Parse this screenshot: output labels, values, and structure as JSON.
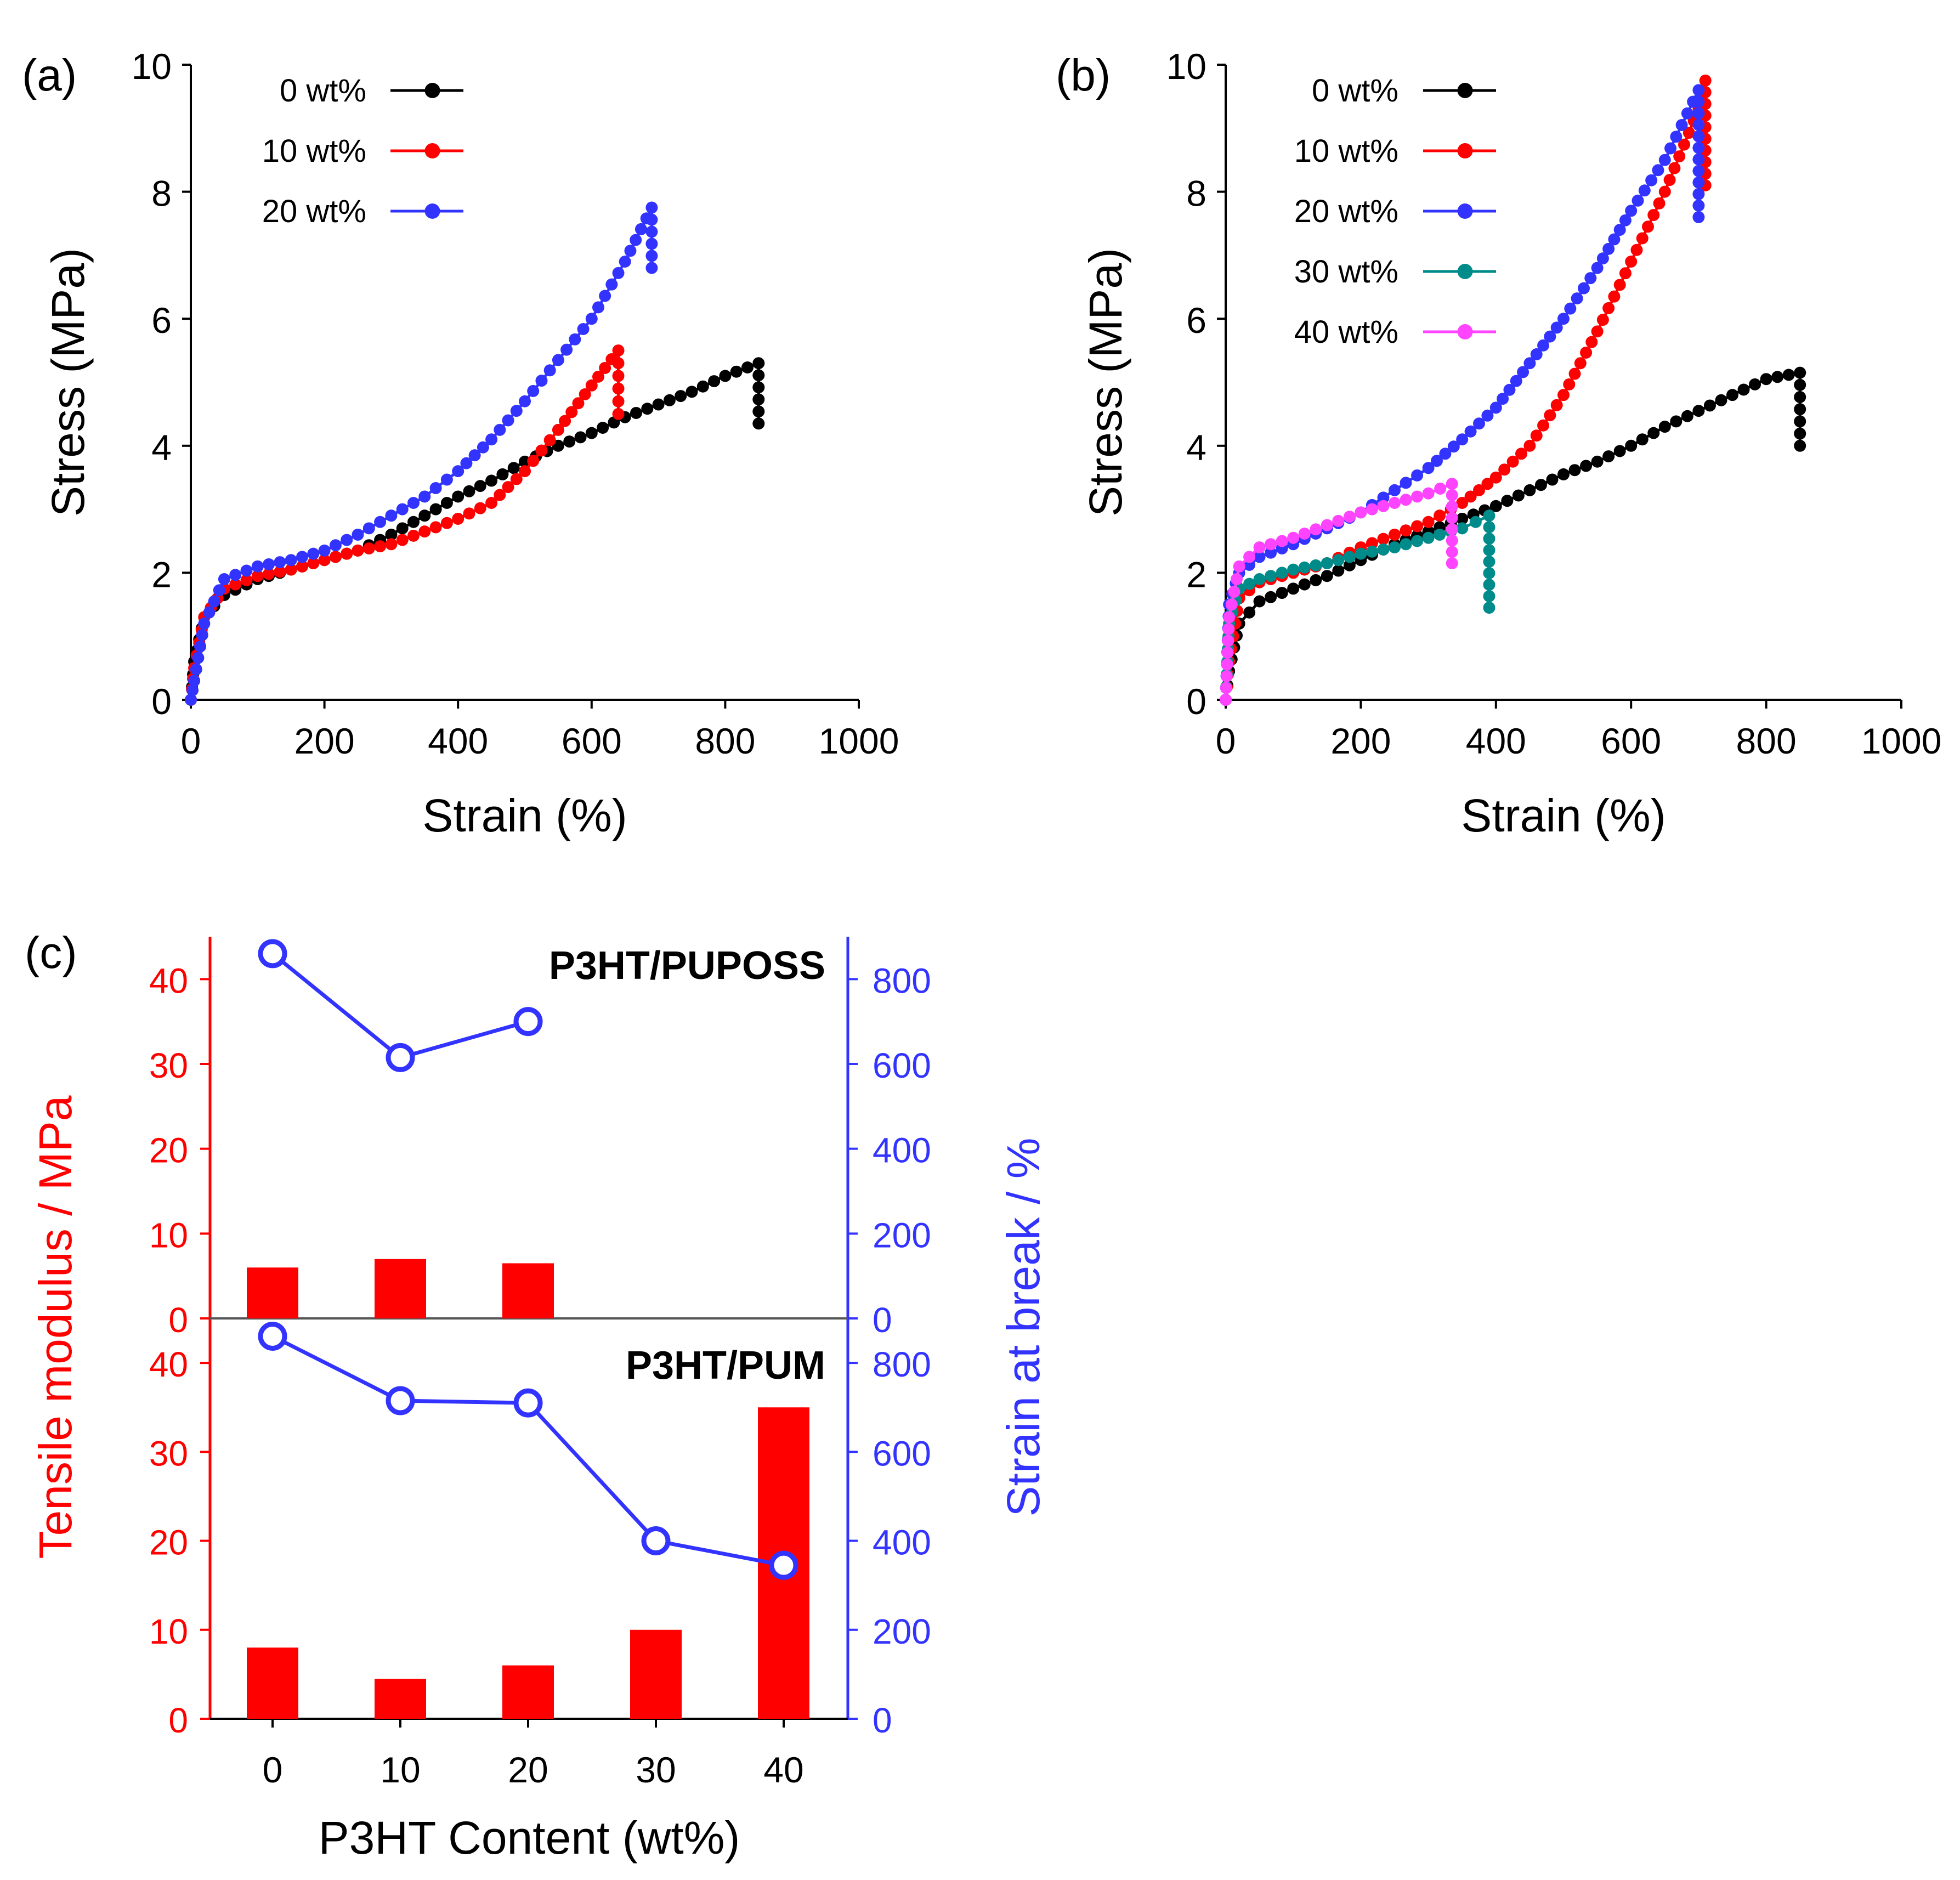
{
  "chart_data": [
    {
      "panel_label": "(a)",
      "type": "line",
      "xlabel": "Strain (%)",
      "ylabel": "Stress (MPa)",
      "xlim": [
        0,
        1000
      ],
      "ylim": [
        0,
        10
      ],
      "x_ticks": [
        "0",
        "200",
        "400",
        "600",
        "800",
        "1000"
      ],
      "y_ticks": [
        "0",
        "2",
        "4",
        "6",
        "8",
        "10"
      ],
      "legend_position": "top-left",
      "series": [
        {
          "name": "0 wt%",
          "color": "#000000",
          "points": [
            [
              0,
              0
            ],
            [
              5,
              0.6
            ],
            [
              20,
              1.3
            ],
            [
              50,
              1.65
            ],
            [
              100,
              1.9
            ],
            [
              150,
              2.05
            ],
            [
              200,
              2.2
            ],
            [
              250,
              2.35
            ],
            [
              300,
              2.6
            ],
            [
              350,
              2.9
            ],
            [
              400,
              3.2
            ],
            [
              450,
              3.45
            ],
            [
              500,
              3.75
            ],
            [
              550,
              4.0
            ],
            [
              600,
              4.2
            ],
            [
              650,
              4.45
            ],
            [
              700,
              4.65
            ],
            [
              750,
              4.85
            ],
            [
              800,
              5.1
            ],
            [
              850,
              5.3
            ],
            [
              850,
              4.35
            ]
          ]
        },
        {
          "name": "10 wt%",
          "color": "#ff0000",
          "points": [
            [
              0,
              0
            ],
            [
              5,
              0.5
            ],
            [
              20,
              1.3
            ],
            [
              50,
              1.75
            ],
            [
              100,
              1.95
            ],
            [
              150,
              2.05
            ],
            [
              200,
              2.2
            ],
            [
              250,
              2.35
            ],
            [
              300,
              2.45
            ],
            [
              350,
              2.65
            ],
            [
              400,
              2.85
            ],
            [
              450,
              3.1
            ],
            [
              500,
              3.6
            ],
            [
              550,
              4.25
            ],
            [
              600,
              4.95
            ],
            [
              640,
              5.5
            ],
            [
              640,
              4.5
            ]
          ]
        },
        {
          "name": "20 wt%",
          "color": "#3333ff",
          "points": [
            [
              0,
              0
            ],
            [
              5,
              0.3
            ],
            [
              20,
              1.2
            ],
            [
              50,
              1.9
            ],
            [
              100,
              2.1
            ],
            [
              150,
              2.2
            ],
            [
              200,
              2.35
            ],
            [
              250,
              2.6
            ],
            [
              300,
              2.9
            ],
            [
              350,
              3.2
            ],
            [
              400,
              3.6
            ],
            [
              450,
              4.1
            ],
            [
              500,
              4.7
            ],
            [
              550,
              5.35
            ],
            [
              600,
              6.0
            ],
            [
              650,
              6.9
            ],
            [
              690,
              7.75
            ],
            [
              690,
              6.8
            ]
          ]
        }
      ]
    },
    {
      "panel_label": "(b)",
      "type": "line",
      "xlabel": "Strain (%)",
      "ylabel": "Stress (MPa)",
      "xlim": [
        0,
        1000
      ],
      "ylim": [
        0,
        10
      ],
      "x_ticks": [
        "0",
        "200",
        "400",
        "600",
        "800",
        "1000"
      ],
      "y_ticks": [
        "0",
        "2",
        "4",
        "6",
        "8",
        "10"
      ],
      "legend_position": "top-left",
      "series": [
        {
          "name": "0 wt%",
          "color": "#000000",
          "points": [
            [
              0,
              0
            ],
            [
              5,
              0.45
            ],
            [
              20,
              1.2
            ],
            [
              50,
              1.55
            ],
            [
              100,
              1.75
            ],
            [
              150,
              1.95
            ],
            [
              200,
              2.2
            ],
            [
              250,
              2.45
            ],
            [
              300,
              2.65
            ],
            [
              350,
              2.85
            ],
            [
              400,
              3.05
            ],
            [
              450,
              3.3
            ],
            [
              500,
              3.55
            ],
            [
              550,
              3.75
            ],
            [
              600,
              4.0
            ],
            [
              650,
              4.3
            ],
            [
              700,
              4.55
            ],
            [
              750,
              4.8
            ],
            [
              800,
              5.05
            ],
            [
              850,
              5.15
            ],
            [
              850,
              4.0
            ]
          ]
        },
        {
          "name": "10 wt%",
          "color": "#ff0000",
          "points": [
            [
              0,
              0
            ],
            [
              5,
              0.6
            ],
            [
              20,
              1.6
            ],
            [
              50,
              1.85
            ],
            [
              100,
              2.0
            ],
            [
              150,
              2.15
            ],
            [
              200,
              2.4
            ],
            [
              250,
              2.6
            ],
            [
              300,
              2.8
            ],
            [
              350,
              3.1
            ],
            [
              400,
              3.5
            ],
            [
              450,
              4.0
            ],
            [
              500,
              4.8
            ],
            [
              550,
              5.8
            ],
            [
              600,
              6.9
            ],
            [
              650,
              8.0
            ],
            [
              700,
              9.3
            ],
            [
              710,
              9.75
            ],
            [
              710,
              8.1
            ]
          ]
        },
        {
          "name": "20 wt%",
          "color": "#3333ff",
          "points": [
            [
              0,
              0
            ],
            [
              5,
              1.5
            ],
            [
              20,
              2.0
            ],
            [
              50,
              2.25
            ],
            [
              100,
              2.45
            ],
            [
              150,
              2.7
            ],
            [
              200,
              2.95
            ],
            [
              250,
              3.3
            ],
            [
              300,
              3.65
            ],
            [
              350,
              4.1
            ],
            [
              400,
              4.6
            ],
            [
              450,
              5.3
            ],
            [
              500,
              6.0
            ],
            [
              550,
              6.8
            ],
            [
              600,
              7.7
            ],
            [
              650,
              8.5
            ],
            [
              700,
              9.6
            ],
            [
              700,
              7.6
            ]
          ]
        },
        {
          "name": "30 wt%",
          "color": "#008b8b",
          "points": [
            [
              0,
              0
            ],
            [
              5,
              1.2
            ],
            [
              20,
              1.75
            ],
            [
              50,
              1.9
            ],
            [
              100,
              2.05
            ],
            [
              150,
              2.15
            ],
            [
              200,
              2.3
            ],
            [
              250,
              2.4
            ],
            [
              300,
              2.55
            ],
            [
              350,
              2.7
            ],
            [
              390,
              2.9
            ],
            [
              390,
              1.45
            ]
          ]
        },
        {
          "name": "40 wt%",
          "color": "#ff44ff",
          "points": [
            [
              0,
              0
            ],
            [
              5,
              1.3
            ],
            [
              20,
              2.1
            ],
            [
              50,
              2.4
            ],
            [
              100,
              2.55
            ],
            [
              150,
              2.75
            ],
            [
              200,
              2.95
            ],
            [
              250,
              3.1
            ],
            [
              300,
              3.25
            ],
            [
              335,
              3.4
            ],
            [
              335,
              2.15
            ]
          ]
        }
      ]
    },
    {
      "panel_label": "(c)",
      "type": "bar",
      "xlabel": "P3HT Content  (wt%)",
      "categories": [
        "0",
        "10",
        "20",
        "30",
        "40"
      ],
      "left_axis_label": "Tensile modulus / MPa",
      "right_axis_label": "Strain at break / %",
      "left_axis_color": "#ff0000",
      "right_axis_color": "#3333ff",
      "left_ticks": [
        "0",
        "10",
        "20",
        "30",
        "40"
      ],
      "right_ticks": [
        "0",
        "200",
        "400",
        "600",
        "800"
      ],
      "left_ylim": [
        0,
        45
      ],
      "right_ylim": [
        0,
        900
      ],
      "subpanels": [
        {
          "title": "P3HT/PUPOSS",
          "tensile_modulus": [
            6,
            7,
            6.5,
            null,
            null
          ],
          "strain_at_break": [
            860,
            615,
            700,
            null,
            null
          ]
        },
        {
          "title": "P3HT/PUM",
          "tensile_modulus": [
            8,
            4.5,
            6,
            10,
            35
          ],
          "strain_at_break": [
            860,
            715,
            710,
            400,
            345
          ]
        }
      ]
    }
  ]
}
